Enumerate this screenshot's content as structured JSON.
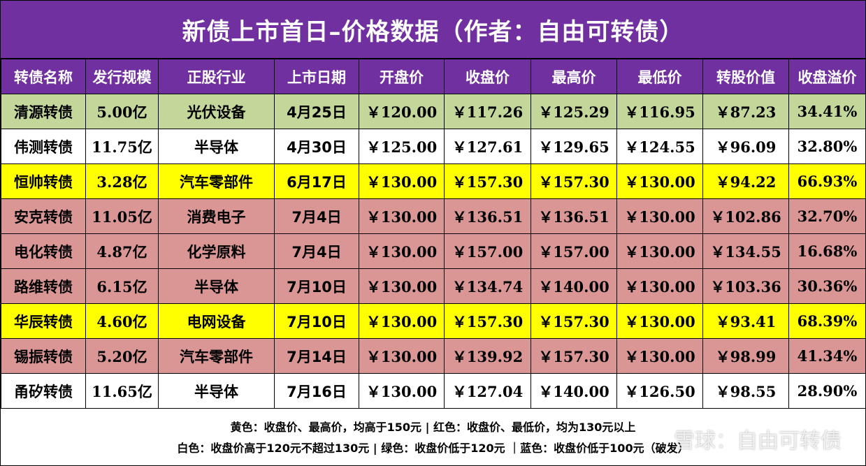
{
  "title": "新债上市首日–价格数据（作者：自由可转债）",
  "headers": [
    "转债名称",
    "发行规模",
    "正股行业",
    "上市日期",
    "开盘价",
    "收盘价",
    "最高价",
    "最低价",
    "转股价值",
    "收盘溢价"
  ],
  "rows": [
    {
      "color": "green",
      "cells": [
        "清源转债",
        "5.00亿",
        "光伏设备",
        "4月25日",
        "￥120.00",
        "￥117.26",
        "￥125.29",
        "￥116.95",
        "￥87.23",
        "34.41%"
      ]
    },
    {
      "color": "white",
      "cells": [
        "伟测转债",
        "11.75亿",
        "半导体",
        "4月30日",
        "￥125.00",
        "￥127.61",
        "￥129.65",
        "￥124.55",
        "￥96.09",
        "32.80%"
      ]
    },
    {
      "color": "yellow",
      "cells": [
        "恒帅转债",
        "3.28亿",
        "汽车零部件",
        "6月17日",
        "￥130.00",
        "￥157.30",
        "￥157.30",
        "￥130.00",
        "￥94.22",
        "66.93%"
      ]
    },
    {
      "color": "red",
      "cells": [
        "安克转债",
        "11.05亿",
        "消费电子",
        "7月4日",
        "￥130.00",
        "￥136.51",
        "￥136.51",
        "￥130.00",
        "￥102.86",
        "32.70%"
      ]
    },
    {
      "color": "red",
      "cells": [
        "电化转债",
        "4.87亿",
        "化学原料",
        "7月4日",
        "￥130.00",
        "￥157.00",
        "￥157.00",
        "￥130.00",
        "￥134.55",
        "16.68%"
      ]
    },
    {
      "color": "red",
      "cells": [
        "路维转债",
        "6.15亿",
        "半导体",
        "7月10日",
        "￥130.00",
        "￥134.74",
        "￥140.00",
        "￥130.00",
        "￥103.36",
        "30.36%"
      ]
    },
    {
      "color": "yellow",
      "cells": [
        "华辰转债",
        "4.60亿",
        "电网设备",
        "7月10日",
        "￥130.00",
        "￥157.30",
        "￥157.30",
        "￥130.00",
        "￥93.41",
        "68.39%"
      ]
    },
    {
      "color": "red",
      "cells": [
        "锡振转债",
        "5.20亿",
        "汽车零部件",
        "7月14日",
        "￥130.00",
        "￥139.92",
        "￥157.30",
        "￥130.00",
        "￥98.99",
        "41.34%"
      ]
    },
    {
      "color": "white",
      "cells": [
        "甬矽转债",
        "11.65亿",
        "半导体",
        "7月16日",
        "￥130.00",
        "￥127.04",
        "￥140.00",
        "￥126.50",
        "￥98.55",
        "28.90%"
      ]
    }
  ],
  "legend": {
    "line1": "黄色：收盘价、最高价，均高于150元 | 红色：收盘价、最低价，均为130元以上",
    "line2": "白色：收盘价高于120元不超过130元 | 绿色：收盘价低于120元 ｜蓝色：收盘价低于100元（破发）"
  },
  "watermark": "雪球：自由可转债",
  "colors": {
    "purple": "#7030a0",
    "green": "#c4d79b",
    "white": "#ffffff",
    "yellow": "#ffff00",
    "red": "#da9694"
  }
}
